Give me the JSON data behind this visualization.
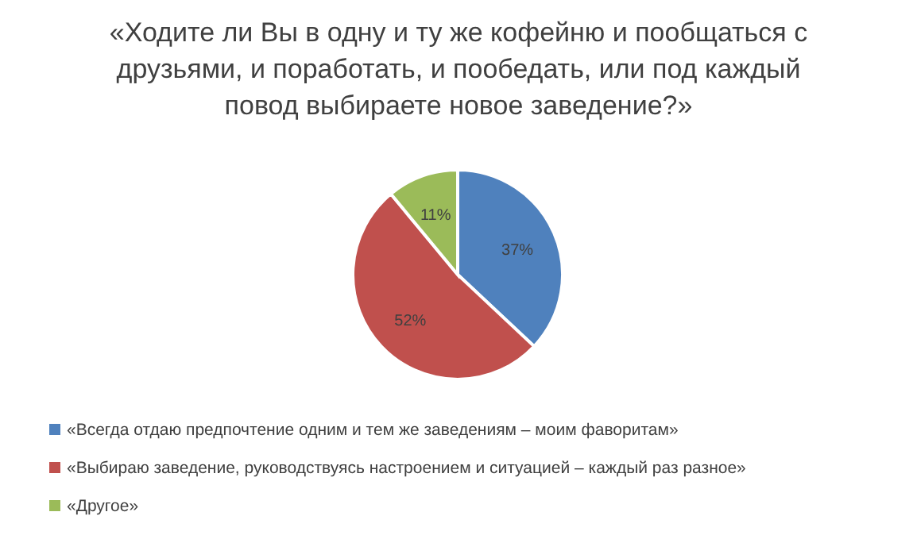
{
  "chart_data": {
    "type": "pie",
    "title": "«Ходите ли Вы в одну и ту же кофейню и пообщаться с друзьями, и поработать, и пообедать, или под каждый повод выбираете новое заведение?»",
    "categories": [
      "«Всегда отдаю предпочтение одним и тем же заведениям – моим фаворитам»",
      "«Выбираю заведение, руководствуясь настроением и ситуацией – каждый раз разное»",
      "«Другое»"
    ],
    "values": [
      37,
      52,
      11
    ],
    "colors": [
      "#4f81bd",
      "#c0504d",
      "#9bbb59"
    ],
    "value_labels": [
      "37%",
      "52%",
      "11%"
    ],
    "legend": "bottom"
  }
}
